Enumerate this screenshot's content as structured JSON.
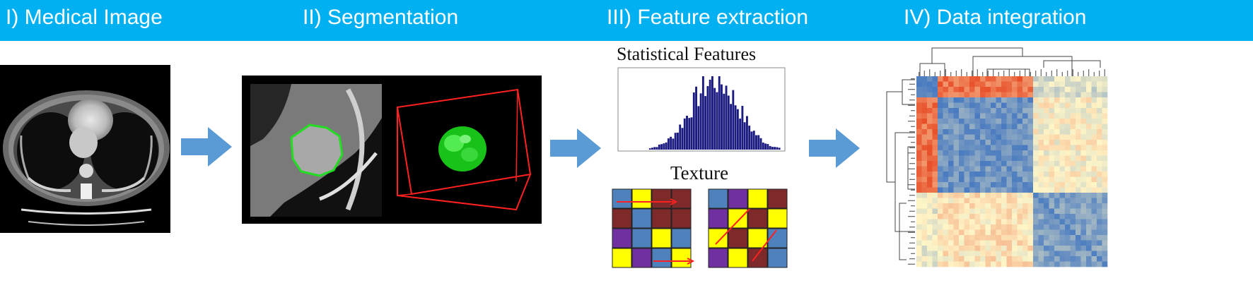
{
  "stages": [
    {
      "label": "I) Medical Image"
    },
    {
      "label": "II) Segmentation"
    },
    {
      "label": "III) Feature extraction"
    },
    {
      "label": "IV) Data integration"
    }
  ],
  "feature_extraction": {
    "statistical_title": "Statistical Features",
    "texture_title": "Texture"
  },
  "colors": {
    "banner": "#00b0f0",
    "arrow": "#5b9bd5",
    "segmentation_outline": "#22dd22",
    "bounding_box": "#ff2020",
    "histogram_bars": "#1a1a80",
    "texture_colors": [
      "#4f81bd",
      "#ffff00",
      "#7f2a2a",
      "#7030a0"
    ],
    "heatmap_low": "#4a7bc0",
    "heatmap_mid": "#fff6c8",
    "heatmap_high": "#e8502a"
  },
  "icons": [
    "ct-scan-image",
    "segmentation-image",
    "3d-tumor-render",
    "histogram-chart",
    "texture-matrix",
    "clustered-heatmap"
  ]
}
